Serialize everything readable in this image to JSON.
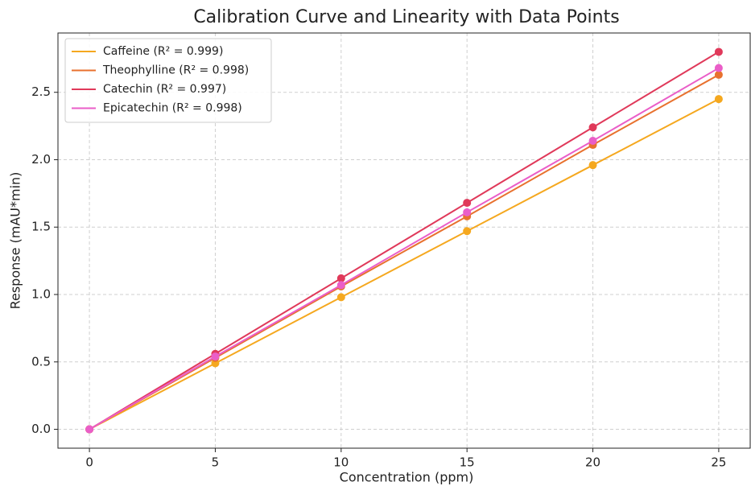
{
  "chart_data": {
    "type": "line",
    "title": "Calibration Curve and Linearity with Data Points",
    "x_label": "Concentration (ppm)",
    "y_label": "Response (mAU*min)",
    "x": [
      0,
      5,
      10,
      15,
      20,
      25
    ],
    "series": [
      {
        "name": "Caffeine (R² = 0.999)",
        "color": "#f5a81f",
        "values": [
          0,
          0.49,
          0.98,
          1.47,
          1.96,
          2.45
        ]
      },
      {
        "name": "Theophylline (R² = 0.998)",
        "color": "#e8712e",
        "values": [
          0,
          0.53,
          1.06,
          1.58,
          2.11,
          2.63
        ]
      },
      {
        "name": "Catechin (R² = 0.997)",
        "color": "#e0395a",
        "values": [
          0,
          0.56,
          1.12,
          1.68,
          2.24,
          2.8
        ]
      },
      {
        "name": "Epicatechin (R² = 0.998)",
        "color": "#ea5ec8",
        "values": [
          0,
          0.54,
          1.07,
          1.61,
          2.14,
          2.68
        ]
      }
    ],
    "xlim": [
      -1.25,
      26.25
    ],
    "ylim": [
      -0.14,
      2.94
    ],
    "xticks": [
      0,
      5,
      10,
      15,
      20,
      25
    ],
    "yticks": [
      {
        "value": 0,
        "label": "0.0"
      },
      0.5,
      {
        "value": 1,
        "label": "1.0"
      },
      1.5,
      {
        "value": 2,
        "label": "2.0"
      },
      2.5
    ],
    "grid": true,
    "legend": "upper-left",
    "markers": true
  }
}
